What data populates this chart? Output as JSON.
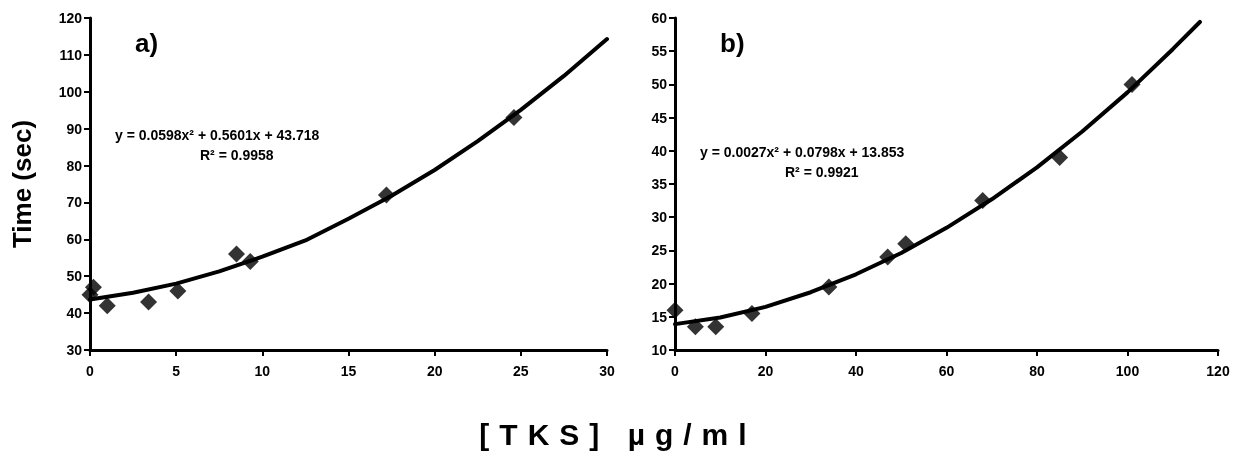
{
  "chart_data": [
    {
      "type": "scatter",
      "title": "a)",
      "ylabel": "Time (sec)",
      "xlabel": "[TKS] µg/ml",
      "annotations": [
        "y = 0.0598x² + 0.5601x + 43.718",
        "R² = 0.9958"
      ],
      "xlim": [
        0,
        30
      ],
      "xticks": [
        0,
        5,
        10,
        15,
        20,
        25,
        30
      ],
      "ylim": [
        30,
        120
      ],
      "yticks": [
        30,
        40,
        50,
        60,
        70,
        80,
        90,
        100,
        110,
        120
      ],
      "grid": false,
      "marker": "diamond",
      "series": [
        {
          "color": "#000000",
          "x": [
            0,
            0.2,
            1,
            3.4,
            5.1,
            8.5,
            9.3,
            17.2,
            24.6
          ],
          "values": [
            45,
            47,
            42,
            43,
            46,
            56,
            54,
            72,
            93
          ]
        },
        {
          "type": "line",
          "color": "#000000",
          "marker": "none",
          "line_style": "solid",
          "x": [
            0,
            2.5,
            5,
            7.5,
            10,
            12.5,
            15,
            17.5,
            20,
            22.5,
            25,
            27.5,
            30
          ],
          "values": [
            43.7,
            45.5,
            48,
            51.3,
            55.3,
            59.7,
            65.6,
            71.8,
            78.8,
            86.6,
            95.1,
            104.3,
            114.3
          ]
        }
      ]
    },
    {
      "type": "scatter",
      "title": "b)",
      "annotations": [
        "y = 0.0027x² + 0.0798x + 13.853",
        "R² = 0.9921"
      ],
      "xlim": [
        0,
        120
      ],
      "xticks": [
        0,
        20,
        40,
        60,
        80,
        100,
        120
      ],
      "ylim": [
        10,
        60
      ],
      "yticks": [
        10,
        15,
        20,
        25,
        30,
        35,
        40,
        45,
        50,
        55,
        60
      ],
      "grid": false,
      "marker": "diamond",
      "series": [
        {
          "color": "#000000",
          "x": [
            0,
            4.5,
            9,
            17,
            34,
            47,
            51,
            68,
            85,
            101
          ],
          "values": [
            16,
            13.5,
            13.5,
            15.5,
            19.5,
            24,
            26,
            32.5,
            39,
            50
          ]
        },
        {
          "type": "line",
          "color": "#000000",
          "marker": "none",
          "line_style": "solid",
          "x": [
            0,
            10,
            20,
            30,
            40,
            50,
            60,
            70,
            80,
            90,
            100,
            110,
            116
          ],
          "values": [
            13.9,
            14.9,
            16.5,
            18.7,
            21.4,
            24.6,
            28.4,
            32.7,
            37.5,
            42.9,
            48.8,
            55.3,
            59.4
          ]
        }
      ]
    }
  ]
}
